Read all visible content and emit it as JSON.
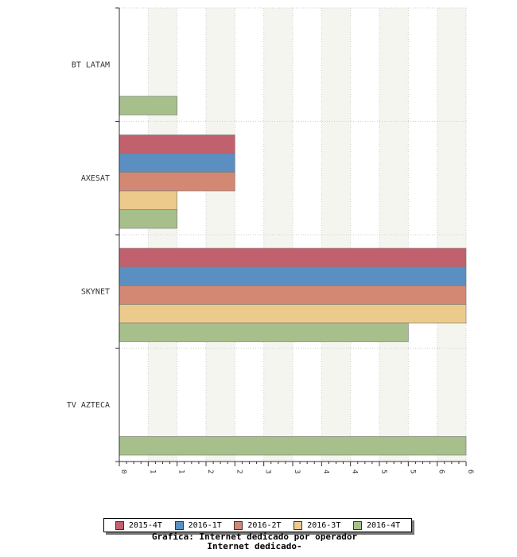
{
  "chart_data": {
    "type": "bar",
    "orientation": "horizontal",
    "title": "Internet dedicado-",
    "subtitle": "Grafica: Internet dedicado por operador",
    "categories": [
      "BT LATAM",
      "AXESAT",
      "SKYNET",
      "TV AZTECA"
    ],
    "series": [
      {
        "name": "2015-4T",
        "color": "#c0616d",
        "values": [
          0,
          2,
          6,
          0
        ]
      },
      {
        "name": "2016-1T",
        "color": "#5b8fc2",
        "values": [
          0,
          2,
          6,
          0
        ]
      },
      {
        "name": "2016-2T",
        "color": "#d38873",
        "values": [
          0,
          2,
          6,
          0
        ]
      },
      {
        "name": "2016-3T",
        "color": "#ecca8c",
        "values": [
          0,
          1,
          6,
          0
        ]
      },
      {
        "name": "2016-4T",
        "color": "#a6bf8b",
        "values": [
          1,
          1,
          5,
          6
        ]
      }
    ],
    "x_ticks": [
      "0",
      "1",
      "1",
      "2",
      "2",
      "3",
      "3",
      "4",
      "4",
      "5",
      "5",
      "6",
      "6"
    ],
    "xlim": [
      0,
      6
    ],
    "xlabel": "",
    "ylabel": "",
    "grid": true,
    "legend_position": "bottom"
  }
}
